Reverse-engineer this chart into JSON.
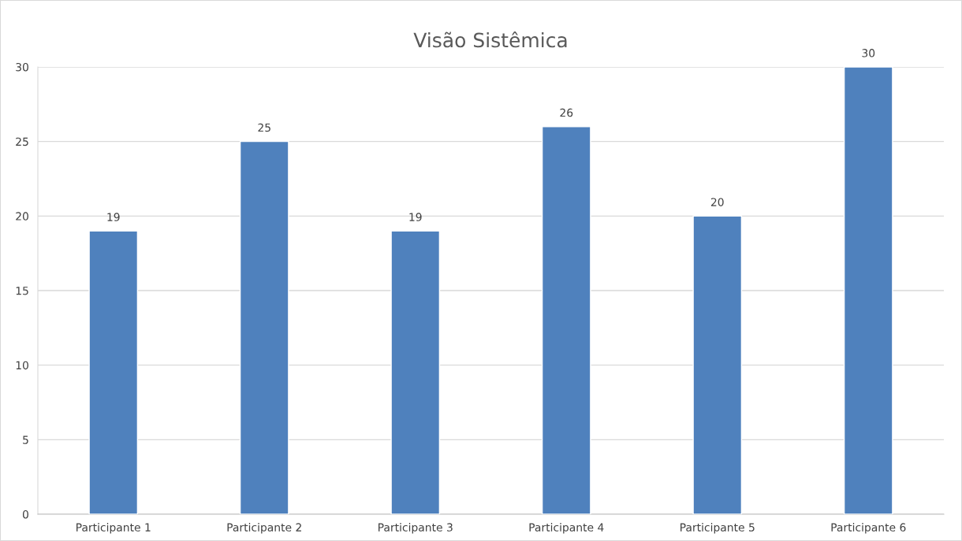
{
  "chart_data": {
    "type": "bar",
    "title": "Visão Sistêmica",
    "categories": [
      "Participante 1",
      "Participante 2",
      "Participante 3",
      "Participante 4",
      "Participante 5",
      "Participante 6"
    ],
    "values": [
      19,
      25,
      19,
      26,
      20,
      30
    ],
    "color": "#4f81bd",
    "ylim": [
      0,
      30
    ],
    "yticks": [
      0,
      5,
      10,
      15,
      20,
      25,
      30
    ],
    "grid": "y",
    "data_labels": true
  }
}
